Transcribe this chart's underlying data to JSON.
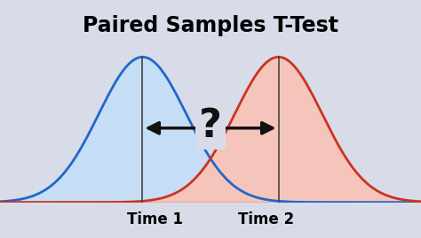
{
  "title": "Paired Samples T-Test",
  "title_fontsize": 17,
  "title_fontweight": "bold",
  "mean1": -1.55,
  "mean2": 1.55,
  "std": 1.0,
  "color1_line": "#2266CC",
  "color1_fill": "#C5DDF5",
  "color2_line": "#CC3322",
  "color2_fill": "#F5C5BB",
  "bg_color": "#D8DCE8",
  "grid_color": "#FFFFFF",
  "vline_color": "#444444",
  "arrow_color": "#111111",
  "label1": "Time 1",
  "label2": "Time 2",
  "label_fontsize": 12,
  "label_fontweight": "bold",
  "question_fontsize": 32,
  "xlim": [
    -4.8,
    4.8
  ],
  "ylim": [
    0.0,
    0.52
  ]
}
